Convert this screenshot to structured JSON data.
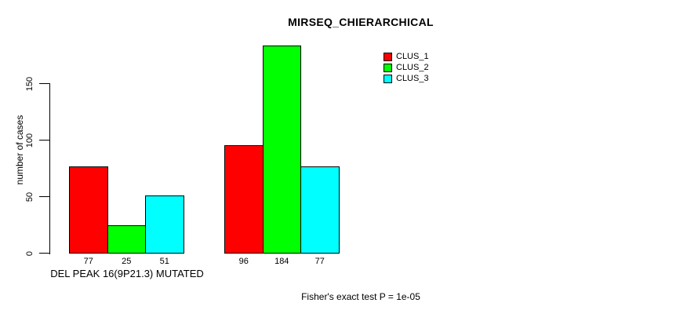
{
  "chart_data": {
    "type": "bar",
    "title": "MIRSEQ_CHIERARCHICAL",
    "ylabel": "number of cases",
    "xlabel": "DEL PEAK 16(9P21.3) MUTATED",
    "yticks": [
      0,
      50,
      100,
      150
    ],
    "ylim": [
      0,
      184
    ],
    "grid": false,
    "legend_position": "top-right",
    "series": [
      {
        "name": "CLUS_1",
        "color": "#ff0000",
        "values": [
          77,
          96
        ]
      },
      {
        "name": "CLUS_2",
        "color": "#00ff00",
        "values": [
          25,
          184
        ]
      },
      {
        "name": "CLUS_3",
        "color": "#00ffff",
        "values": [
          51,
          77
        ]
      }
    ],
    "groups": [
      {
        "label": "DEL PEAK 16(9P21.3) MUTATED",
        "bar_labels": [
          "77",
          "25",
          "51"
        ]
      },
      {
        "label": "",
        "bar_labels": [
          "96",
          "184",
          "77"
        ]
      }
    ],
    "footnote": "Fisher's exact test P = 1e-05"
  }
}
